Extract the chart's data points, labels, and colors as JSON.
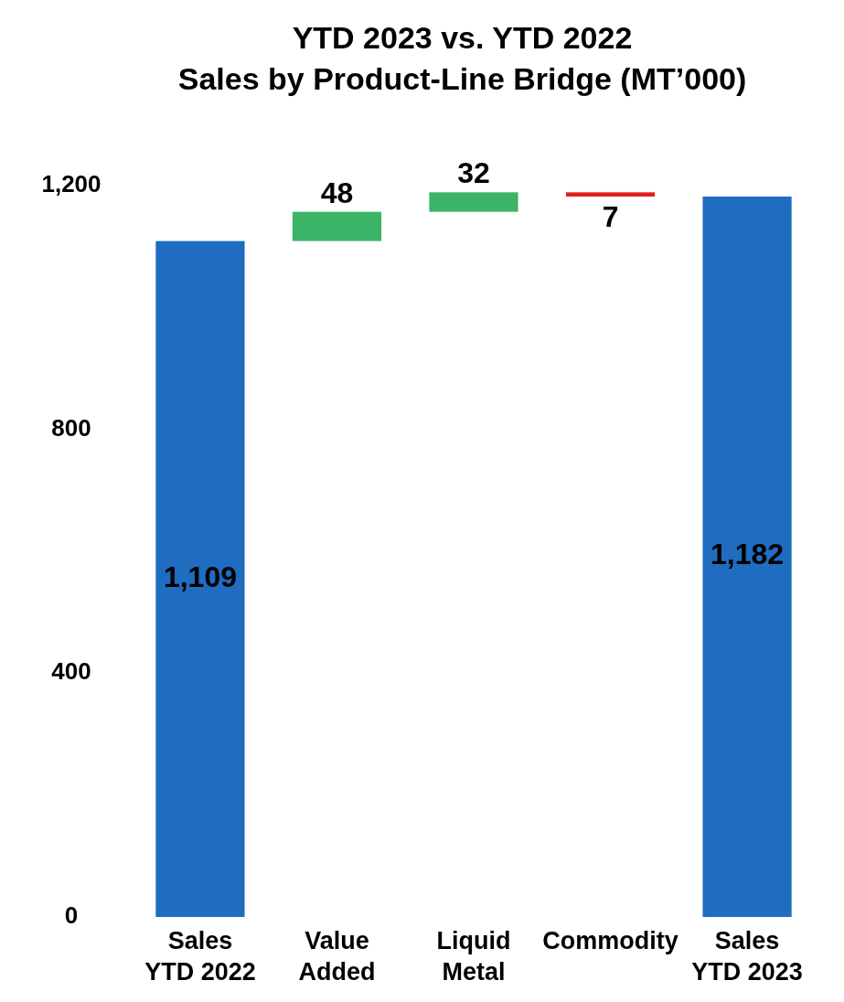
{
  "chart_data": {
    "type": "bar",
    "title": "YTD 2023 vs. YTD 2022\nSales by Product-Line Bridge (MT’000)",
    "categories": [
      "Sales\nYTD 2022",
      "Value\nAdded",
      "Liquid\nMetal",
      "Commodity",
      "Sales\nYTD 2023"
    ],
    "values": [
      1109,
      48,
      32,
      -7,
      1182
    ],
    "base": [
      0,
      1109,
      1157,
      1189,
      0
    ],
    "colors": [
      "#1f6cc0",
      "#3cb468",
      "#3cb468",
      "#e0201c",
      "#1f6cc0"
    ],
    "value_labels": [
      "1,109",
      "48",
      "32",
      "7",
      "1,182"
    ],
    "ylim": [
      0,
      1200
    ],
    "yticks": [
      0,
      400,
      800,
      {
        "value": 1200,
        "label": "1,200"
      }
    ]
  }
}
